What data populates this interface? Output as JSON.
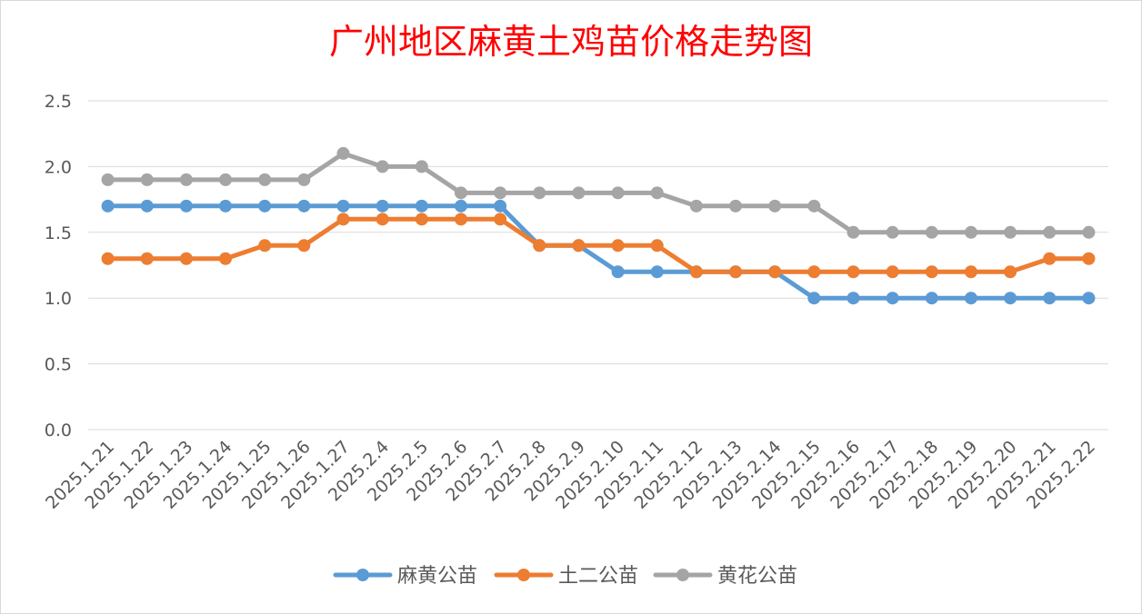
{
  "chart_data": {
    "type": "line",
    "title": "广州地区麻黄土鸡苗价格走势图",
    "xlabel": "",
    "ylabel": "",
    "ylim": [
      0,
      2.5
    ],
    "yticks": [
      "0.0",
      "0.5",
      "1.0",
      "1.5",
      "2.0",
      "2.5"
    ],
    "grid": true,
    "legend_position": "bottom",
    "categories": [
      "2025.1.21",
      "2025.1.22",
      "2025.1.23",
      "2025.1.24",
      "2025.1.25",
      "2025.1.26",
      "2025.1.27",
      "2025.2.4",
      "2025.2.5",
      "2025.2.6",
      "2025.2.7",
      "2025.2.8",
      "2025.2.9",
      "2025.2.10",
      "2025.2.11",
      "2025.2.12",
      "2025.2.13",
      "2025.2.14",
      "2025.2.15",
      "2025.2.16",
      "2025.2.17",
      "2025.2.18",
      "2025.2.19",
      "2025.2.20",
      "2025.2.21",
      "2025.2.22"
    ],
    "series": [
      {
        "name": "麻黄公苗",
        "color": "#5b9bd5",
        "values": [
          1.7,
          1.7,
          1.7,
          1.7,
          1.7,
          1.7,
          1.7,
          1.7,
          1.7,
          1.7,
          1.7,
          1.4,
          1.4,
          1.2,
          1.2,
          1.2,
          1.2,
          1.2,
          1.0,
          1.0,
          1.0,
          1.0,
          1.0,
          1.0,
          1.0,
          1.0
        ]
      },
      {
        "name": "土二公苗",
        "color": "#ed7d31",
        "values": [
          1.3,
          1.3,
          1.3,
          1.3,
          1.4,
          1.4,
          1.6,
          1.6,
          1.6,
          1.6,
          1.6,
          1.4,
          1.4,
          1.4,
          1.4,
          1.2,
          1.2,
          1.2,
          1.2,
          1.2,
          1.2,
          1.2,
          1.2,
          1.2,
          1.3,
          1.3
        ]
      },
      {
        "name": "黄花公苗",
        "color": "#a5a5a5",
        "values": [
          1.9,
          1.9,
          1.9,
          1.9,
          1.9,
          1.9,
          2.1,
          2.0,
          2.0,
          1.8,
          1.8,
          1.8,
          1.8,
          1.8,
          1.8,
          1.7,
          1.7,
          1.7,
          1.7,
          1.5,
          1.5,
          1.5,
          1.5,
          1.5,
          1.5,
          1.5
        ]
      }
    ]
  },
  "colors": {
    "title": "#ff0000",
    "gridline": "#d9d9d9",
    "axis_text": "#595959",
    "background": "#ffffff"
  }
}
